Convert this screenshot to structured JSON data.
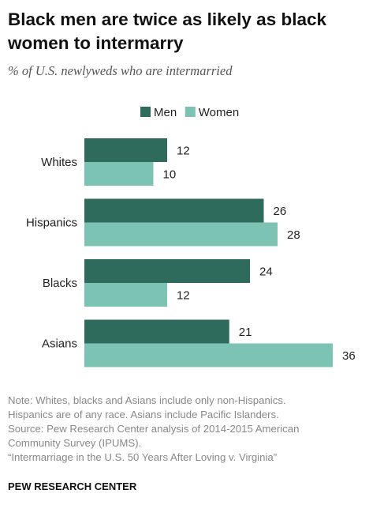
{
  "header": {
    "title_line1": "Black men are twice as likely as black",
    "title_line2": "women to intermarry",
    "subtitle": "% of U.S. newlyweds who are intermarried"
  },
  "chart_data": {
    "type": "bar",
    "orientation": "horizontal",
    "categories": [
      "Whites",
      "Hispanics",
      "Blacks",
      "Asians"
    ],
    "series": [
      {
        "name": "Men",
        "values": [
          12,
          26,
          24,
          21
        ],
        "color": "#2e6b5c"
      },
      {
        "name": "Women",
        "values": [
          10,
          28,
          12,
          36
        ],
        "color": "#7dc3b4"
      }
    ],
    "title": "Black men are twice as likely as black women to intermarry",
    "subtitle": "% of U.S. newlyweds who are intermarried",
    "legend_position": "top",
    "grid": false
  },
  "notes": {
    "line1": "Note: Whites, blacks and Asians include only non-Hispanics.",
    "line2": "Hispanics are of any race. Asians include Pacific Islanders.",
    "line3": "Source: Pew Research Center analysis of 2014-2015 American",
    "line4": "Community Survey (IPUMS).",
    "line5": "“Intermarriage in the U.S. 50 Years After Loving v. Virginia”"
  },
  "footer": {
    "brand": "PEW RESEARCH CENTER"
  }
}
